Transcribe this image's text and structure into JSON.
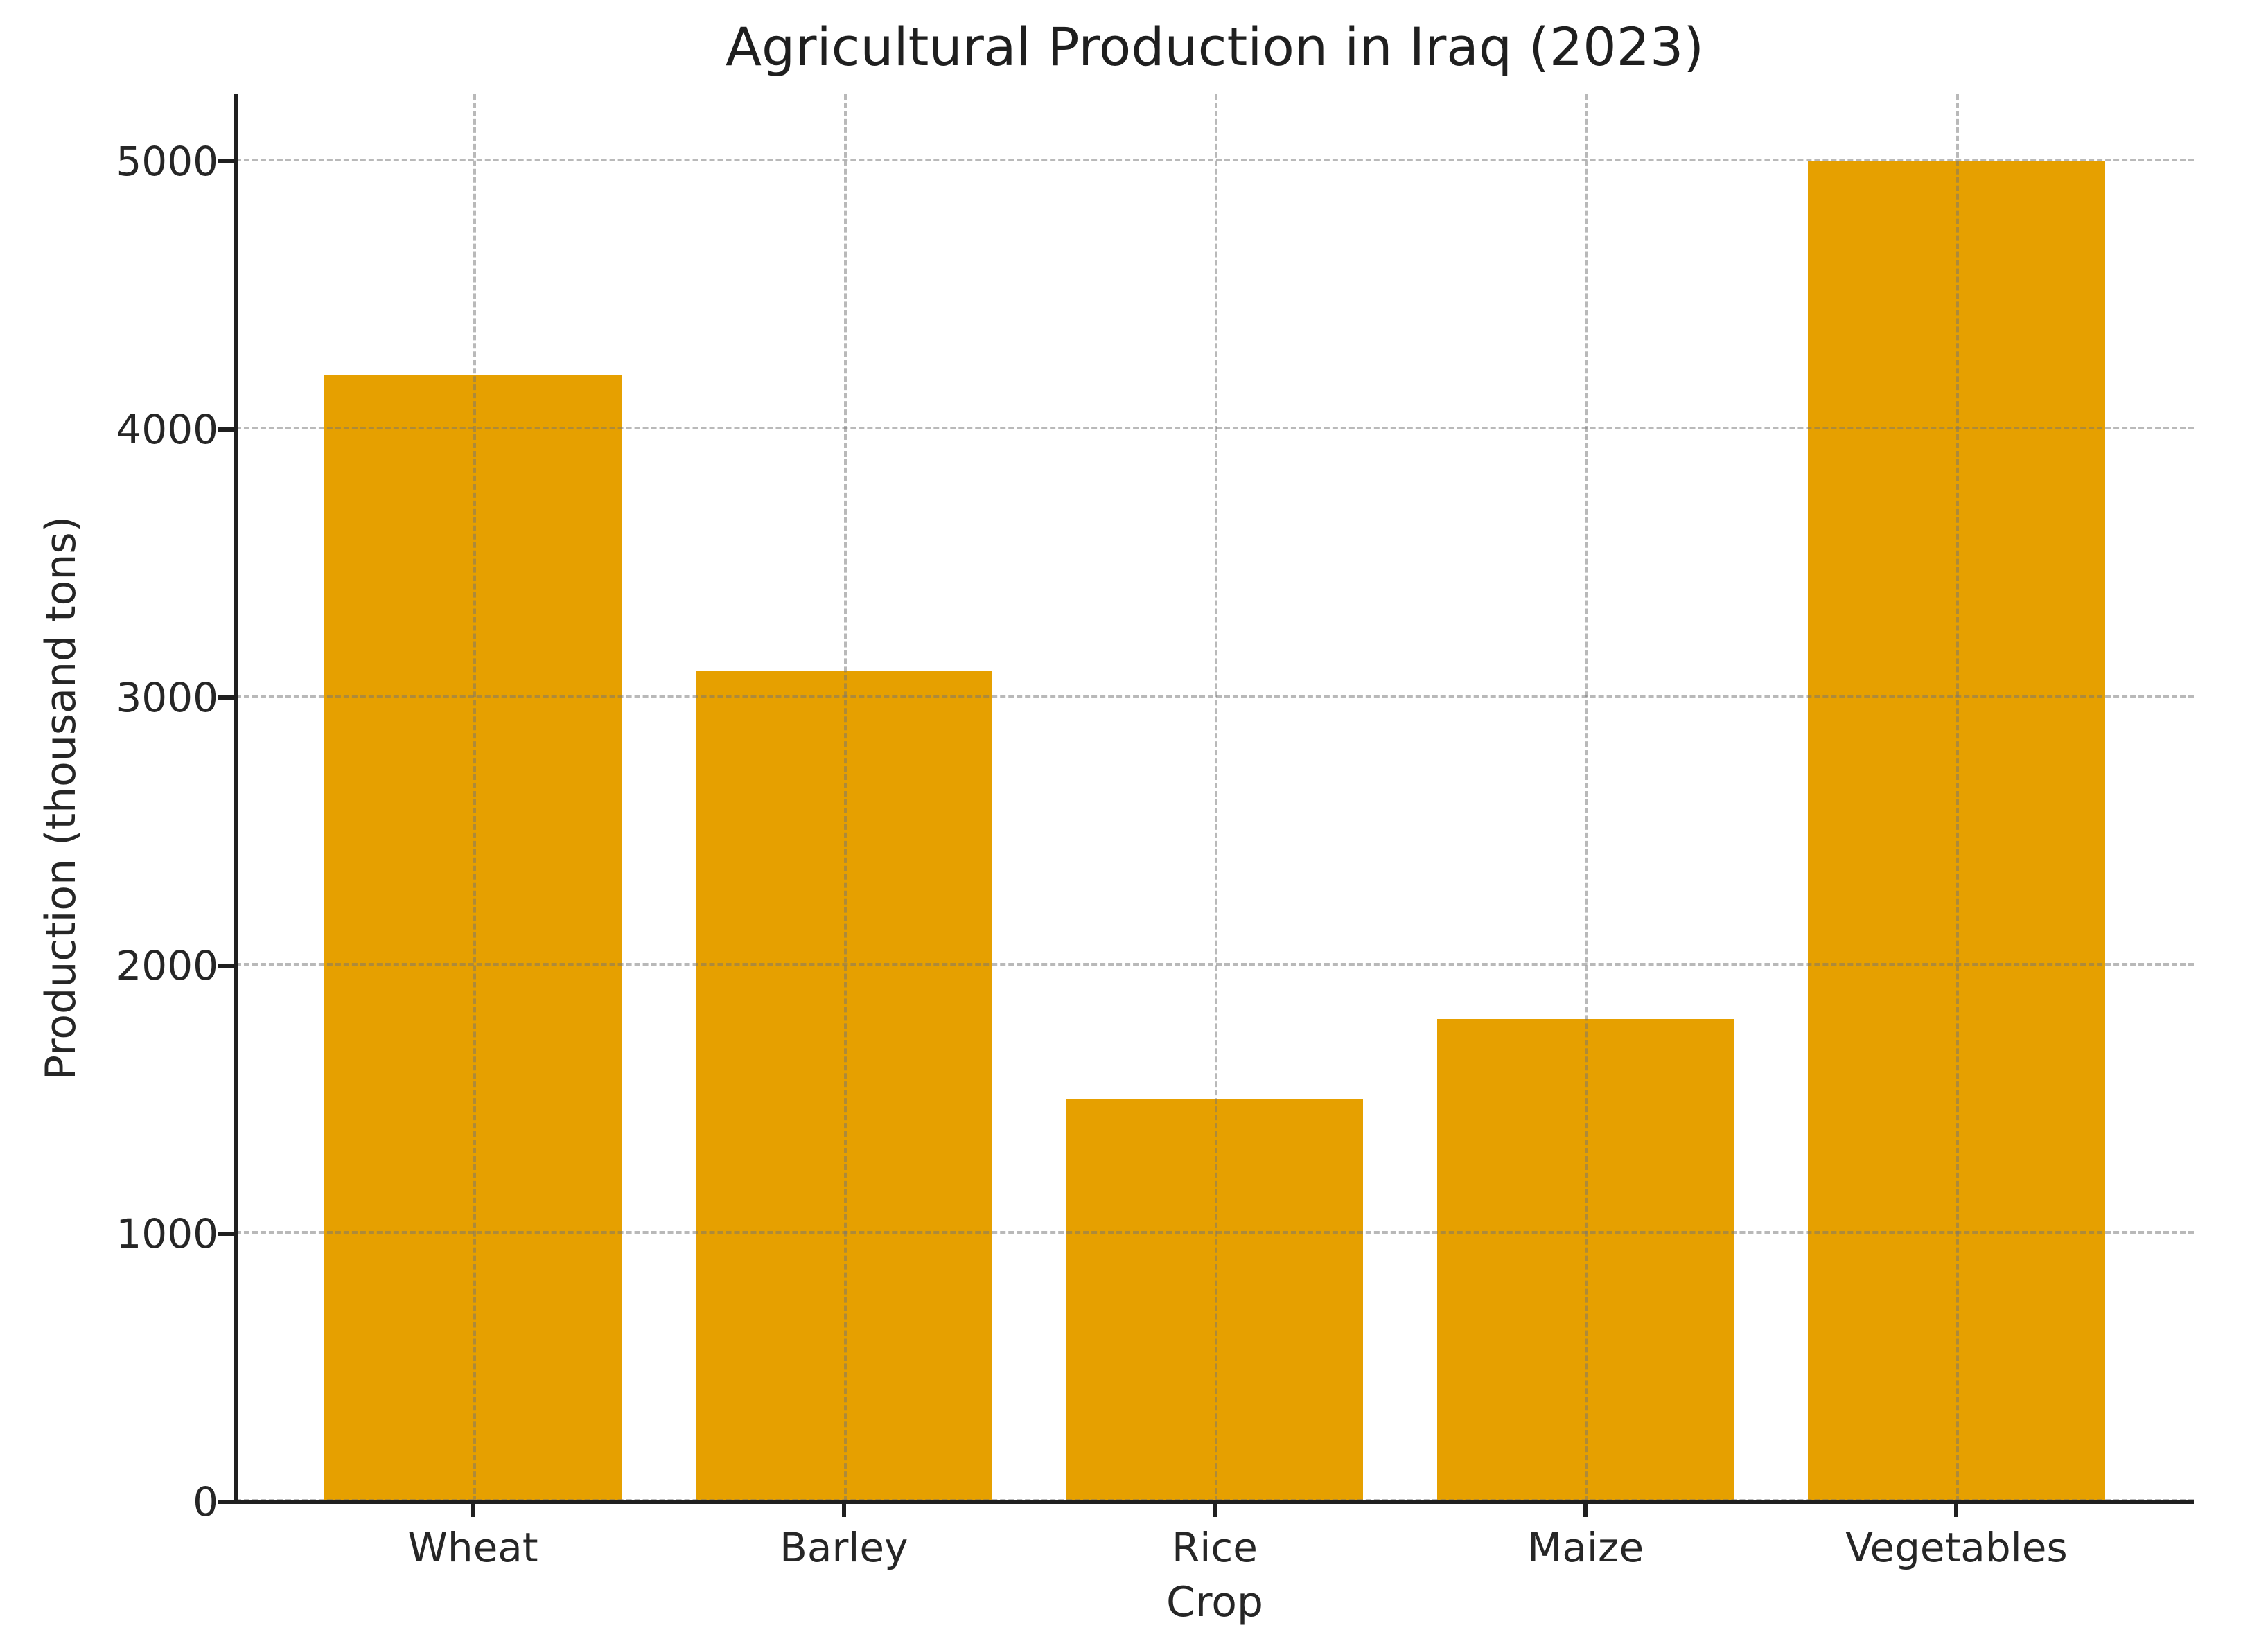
{
  "chart_data": {
    "type": "bar",
    "title": "Agricultural Production in Iraq (2023)",
    "xlabel": "Crop",
    "ylabel": "Production (thousand tons)",
    "categories": [
      "Wheat",
      "Barley",
      "Rice",
      "Maize",
      "Vegetables"
    ],
    "values": [
      4200,
      3100,
      1500,
      1800,
      5000
    ],
    "yticks": [
      0,
      1000,
      2000,
      3000,
      4000,
      5000
    ],
    "ylim": [
      0,
      5250
    ],
    "bar_color": "#E6A000",
    "grid": {
      "visible": true,
      "style": "dashed",
      "axis": "both",
      "color": "#bbbbbb"
    },
    "legend_position": "none",
    "background_color": "#ffffff",
    "text_color": "#262626"
  }
}
